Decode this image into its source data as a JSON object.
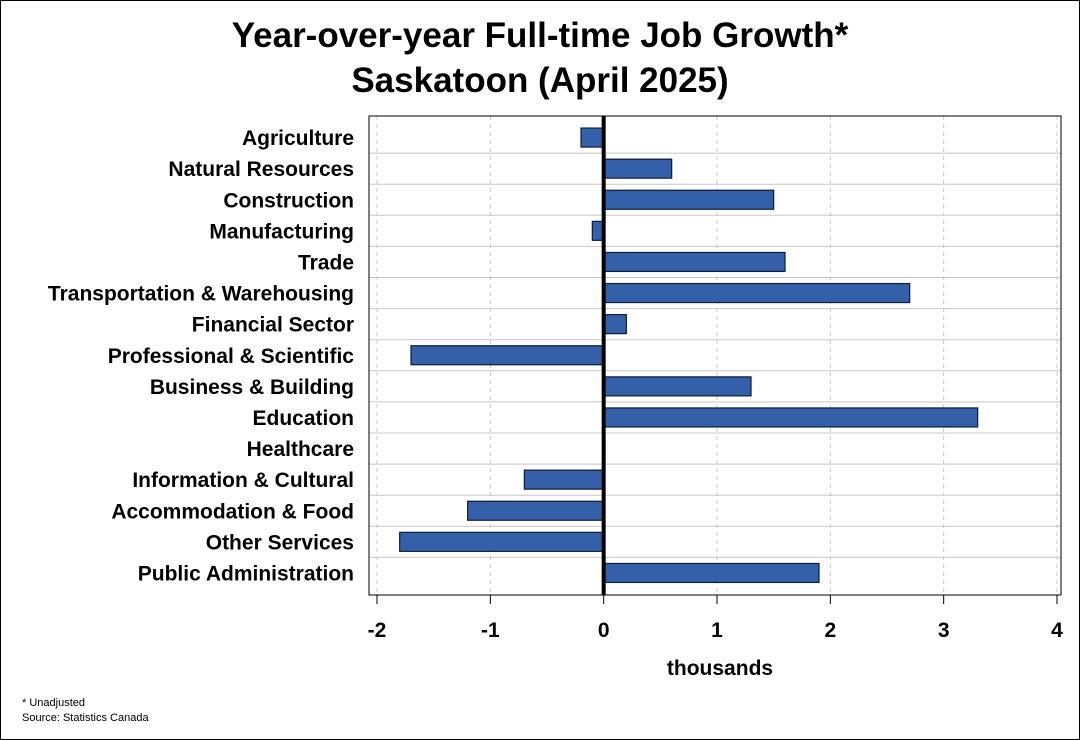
{
  "chart_data": {
    "type": "bar",
    "orientation": "horizontal",
    "title": "Year-over-year Full-time Job Growth*",
    "subtitle": "Saskatoon (April 2025)",
    "xlabel": "thousands",
    "ylabel": "",
    "xlim": [
      -2,
      4
    ],
    "xticks": [
      -2,
      -1,
      0,
      1,
      2,
      3,
      4
    ],
    "xtick_labels": [
      "-2",
      "-1",
      "0",
      "1",
      "2",
      "3",
      "4"
    ],
    "grid": "vertical dashed",
    "categories": [
      "Agriculture",
      "Natural Resources",
      "Construction",
      "Manufacturing",
      "Trade",
      "Transportation & Warehousing",
      "Financial Sector",
      "Professional & Scientific",
      "Business & Building",
      "Education",
      "Healthcare",
      "Information & Cultural",
      "Accommodation & Food",
      "Other Services",
      "Public Administration"
    ],
    "values": [
      -0.2,
      0.6,
      1.5,
      -0.1,
      1.6,
      2.7,
      0.2,
      -1.7,
      1.3,
      3.3,
      0.0,
      -0.7,
      -1.2,
      -1.8,
      1.9
    ],
    "colors": {
      "bar_fill": "#3460aa",
      "bar_stroke": "#0e1c3a",
      "zero_line": "#000000",
      "grid": "#c8c8c8"
    }
  },
  "footnotes": {
    "note": "* Unadjusted",
    "source": "Source: Statistics Canada"
  }
}
